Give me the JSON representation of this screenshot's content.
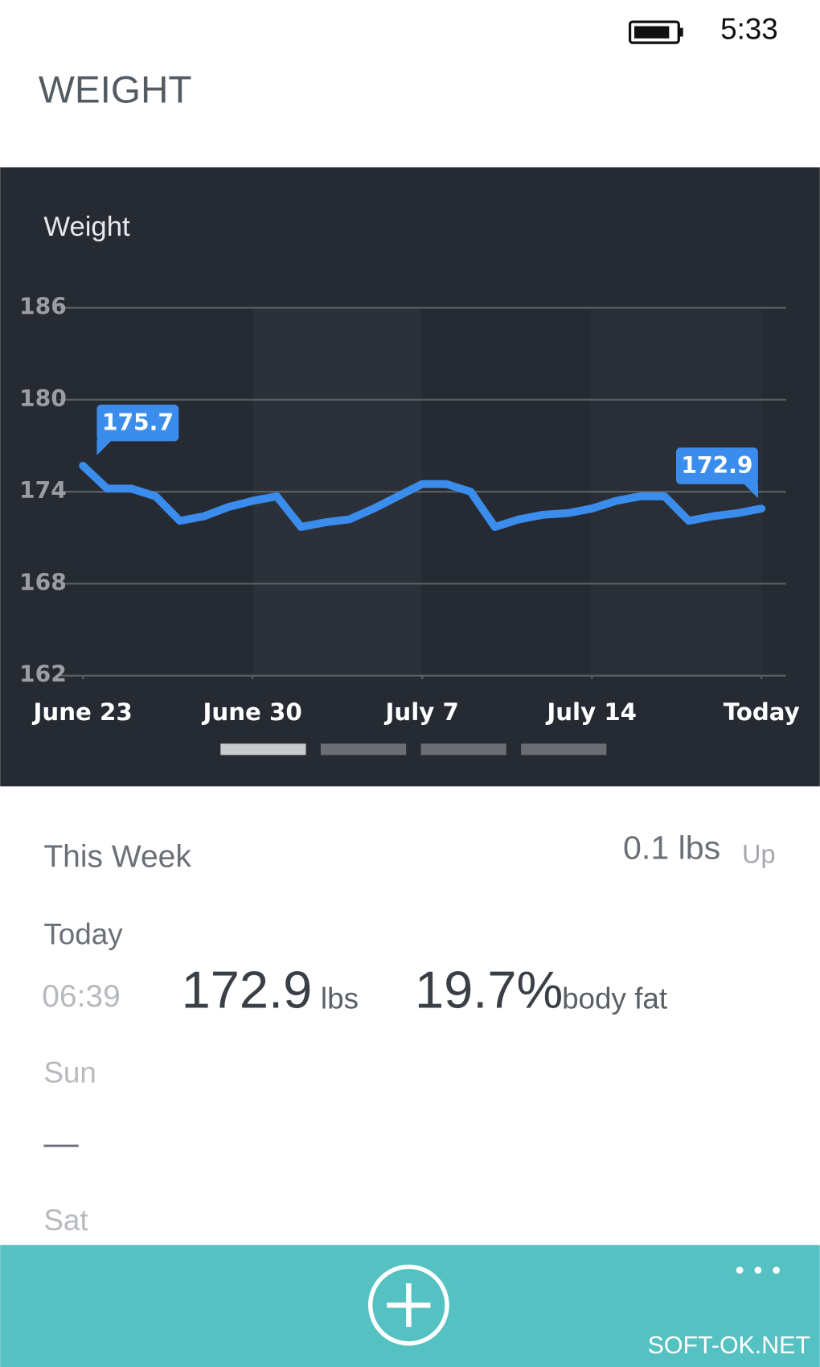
{
  "status_bar": {
    "time": "5:33"
  },
  "header": {
    "title": "WEIGHT"
  },
  "chart_data": {
    "type": "line",
    "title": "Weight",
    "x": [
      0,
      1,
      2,
      3,
      4,
      5,
      6,
      7,
      8,
      9,
      10,
      11,
      12,
      13,
      14,
      15,
      16,
      17,
      18,
      19,
      20,
      21,
      22,
      23,
      24,
      25,
      26,
      27,
      28
    ],
    "values": [
      175.7,
      174.2,
      174.2,
      173.7,
      172.1,
      172.4,
      173.0,
      173.4,
      173.7,
      171.7,
      172.0,
      172.2,
      172.9,
      173.7,
      174.5,
      174.5,
      174.0,
      171.7,
      172.2,
      172.5,
      172.6,
      172.9,
      173.4,
      173.7,
      173.7,
      172.1,
      172.4,
      172.6,
      172.9
    ],
    "color": "#3b8ded",
    "xlim": [
      0,
      28
    ],
    "xticks": [
      {
        "value": 0,
        "label": "June 23"
      },
      {
        "value": 7,
        "label": "June 30"
      },
      {
        "value": 14,
        "label": "July 7"
      },
      {
        "value": 21,
        "label": "July 14"
      },
      {
        "value": 28,
        "label": "Today"
      }
    ],
    "ylim": [
      162,
      186
    ],
    "yticks": [
      162,
      168,
      174,
      180,
      186
    ],
    "grid": true
  },
  "summary": {
    "label": "This Week",
    "change": "0.1 lbs",
    "direction": "Up"
  },
  "entries": [
    {
      "day": "Today",
      "time": "06:39",
      "weight": "172.9",
      "weight_unit": "lbs",
      "body_fat": "19.7%",
      "body_fat_label": "body fat"
    },
    {
      "day": "Sun",
      "value": "—"
    },
    {
      "day": "Sat"
    }
  ],
  "watermark": "SOFT-OK.NET"
}
